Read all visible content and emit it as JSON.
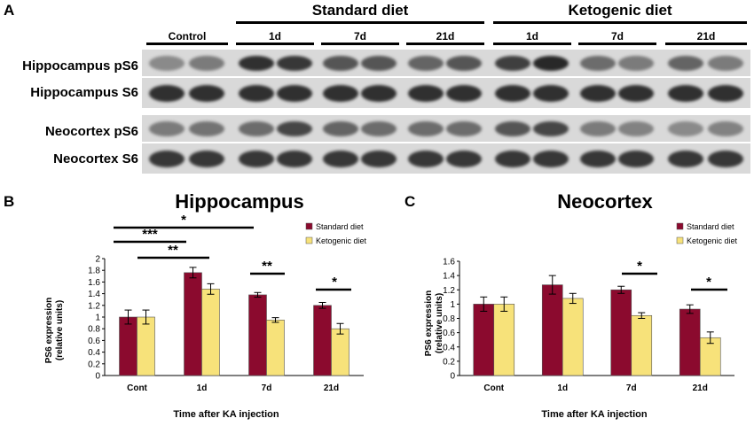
{
  "panels": {
    "a": "A",
    "b": "B",
    "c": "C"
  },
  "blot": {
    "group_labels": {
      "standard": "Standard diet",
      "ketogenic": "Ketogenic diet",
      "control": "Control"
    },
    "lane_groups": [
      "1d",
      "7d",
      "21d",
      "1d",
      "7d",
      "21d"
    ],
    "rows": [
      {
        "label": "Hippocampus pS6",
        "intensities": [
          0.35,
          0.45,
          0.95,
          0.9,
          0.7,
          0.7,
          0.6,
          0.7,
          0.85,
          1.0,
          0.55,
          0.45,
          0.6,
          0.45
        ]
      },
      {
        "label": "Hippocampus S6",
        "intensities": [
          0.95,
          0.95,
          0.95,
          0.95,
          0.95,
          0.95,
          0.95,
          0.95,
          0.95,
          0.95,
          0.95,
          0.95,
          0.95,
          0.95
        ]
      },
      {
        "label": "Neocortex pS6",
        "intensities": [
          0.45,
          0.5,
          0.55,
          0.8,
          0.6,
          0.55,
          0.55,
          0.55,
          0.7,
          0.8,
          0.45,
          0.4,
          0.35,
          0.4
        ]
      },
      {
        "label": "Neocortex S6",
        "intensities": [
          0.9,
          0.9,
          0.9,
          0.9,
          0.9,
          0.9,
          0.9,
          0.9,
          0.9,
          0.9,
          0.9,
          0.9,
          0.9,
          0.9
        ]
      }
    ]
  },
  "colors": {
    "standard": "#8b0a2e",
    "ketogenic": "#f7e27a"
  },
  "chart_data": [
    {
      "type": "bar",
      "title": "Hippocampus",
      "categories": [
        "Cont",
        "1d",
        "7d",
        "21d"
      ],
      "series": [
        {
          "name": "Standard diet",
          "values": [
            1.0,
            1.76,
            1.38,
            1.2
          ],
          "errors": [
            0.12,
            0.09,
            0.04,
            0.05
          ]
        },
        {
          "name": "Ketogenic diet",
          "values": [
            1.0,
            1.48,
            0.95,
            0.8
          ],
          "errors": [
            0.12,
            0.09,
            0.04,
            0.09
          ]
        }
      ],
      "xlabel": "Time after KA injection",
      "ylabel": "PS6 expression (relative units)",
      "ylim": [
        0,
        2
      ],
      "yticks": [
        "0",
        "0.2",
        "0.4",
        "0.6",
        "0.8",
        "1",
        "1.2",
        "1.4",
        "1.6",
        "1.8",
        "2"
      ],
      "significance": [
        "*",
        "***",
        "**",
        "**",
        "*"
      ],
      "legend": "top-right"
    },
    {
      "type": "bar",
      "title": "Neocortex",
      "categories": [
        "Cont",
        "1d",
        "7d",
        "21d"
      ],
      "series": [
        {
          "name": "Standard diet",
          "values": [
            1.0,
            1.27,
            1.2,
            0.93
          ],
          "errors": [
            0.1,
            0.13,
            0.05,
            0.06
          ]
        },
        {
          "name": "Ketogenic diet",
          "values": [
            1.0,
            1.08,
            0.84,
            0.53
          ],
          "errors": [
            0.1,
            0.07,
            0.04,
            0.08
          ]
        }
      ],
      "xlabel": "Time after KA injection",
      "ylabel": "PS6 expression (relative units)",
      "ylim": [
        0,
        1.6
      ],
      "yticks": [
        "0",
        "0.2",
        "0.4",
        "0.6",
        "0.8",
        "1",
        "1.2",
        "1.4",
        "1.6"
      ],
      "significance": [
        "*",
        "*"
      ],
      "legend": "top-right"
    }
  ]
}
